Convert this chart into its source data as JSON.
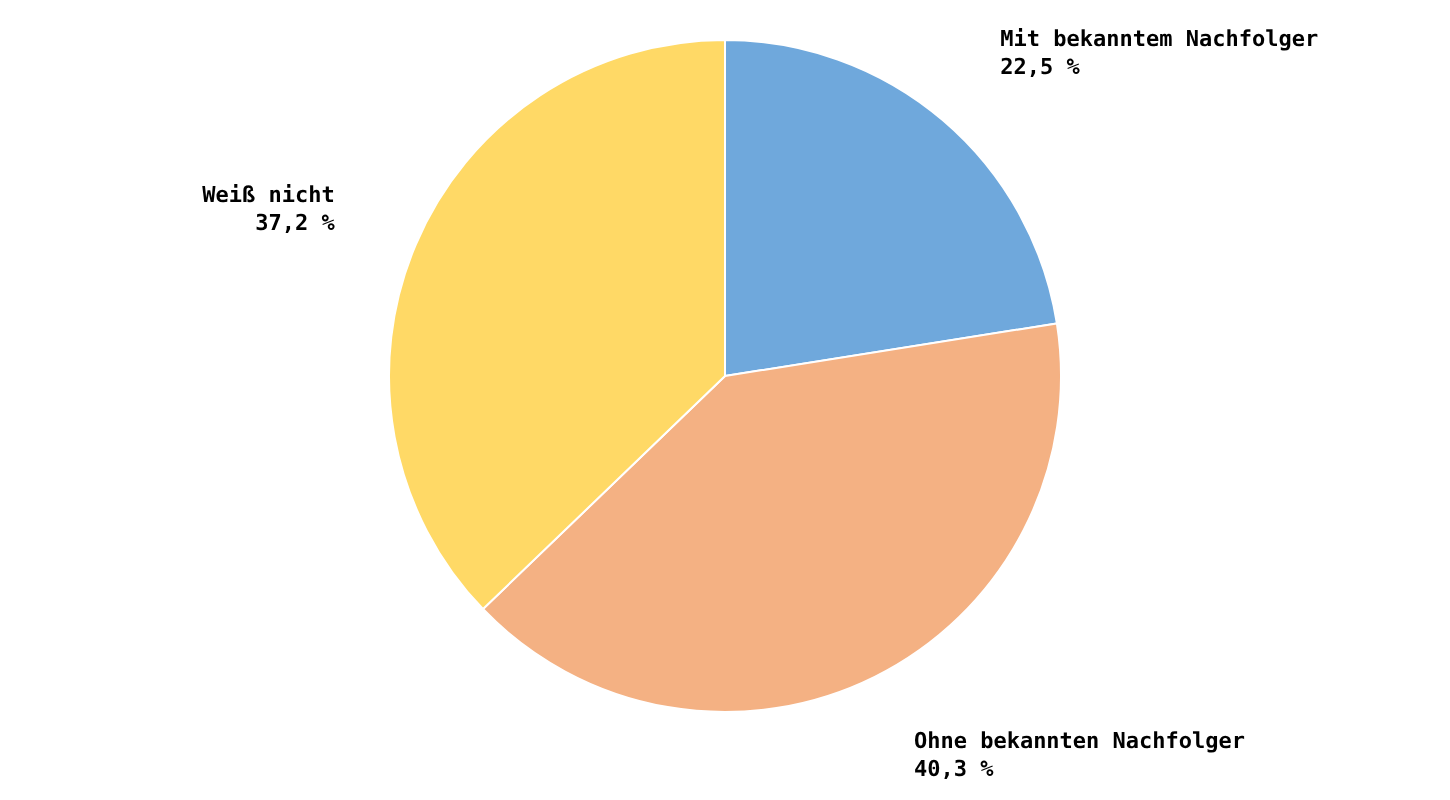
{
  "chart_data": {
    "type": "pie",
    "categories": [
      "Mit bekanntem Nachfolger",
      "Ohne bekannten Nachfolger",
      "Weiß nicht"
    ],
    "values": [
      22.5,
      40.3,
      37.2
    ],
    "value_labels": [
      "22,5 %",
      "40,3 %",
      "37,2 %"
    ],
    "colors": [
      "#6fa8dc",
      "#f4b183",
      "#ffd966"
    ]
  }
}
